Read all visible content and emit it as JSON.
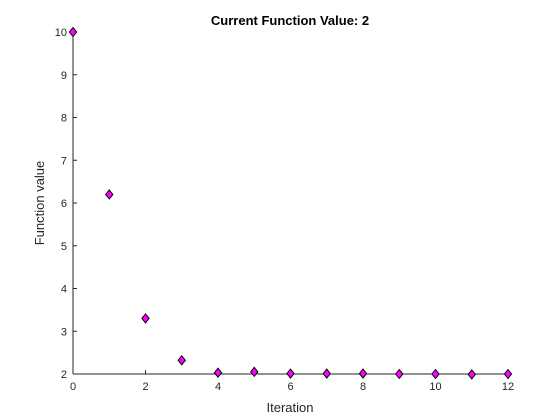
{
  "chart_data": {
    "type": "scatter",
    "title": "Current Function Value: 2",
    "xlabel": "Iteration",
    "ylabel": "Function value",
    "xlim": [
      0,
      12
    ],
    "ylim": [
      2,
      10
    ],
    "xticks": [
      "0",
      "2",
      "4",
      "6",
      "8",
      "10",
      "12"
    ],
    "yticks": [
      "2",
      "3",
      "4",
      "5",
      "6",
      "7",
      "8",
      "9",
      "10"
    ],
    "grid": false,
    "marker": "diamond",
    "marker_color": "#ff00ff",
    "marker_edge_color": "#000000",
    "series": [
      {
        "x": [
          0,
          1,
          2,
          3,
          4,
          5,
          6,
          7,
          8,
          9,
          10,
          11,
          12
        ],
        "y": [
          10,
          6.2,
          3.3,
          2.32,
          2.03,
          2.05,
          2.01,
          2.01,
          2.01,
          2.0,
          2.0,
          1.99,
          2.0
        ]
      }
    ]
  }
}
